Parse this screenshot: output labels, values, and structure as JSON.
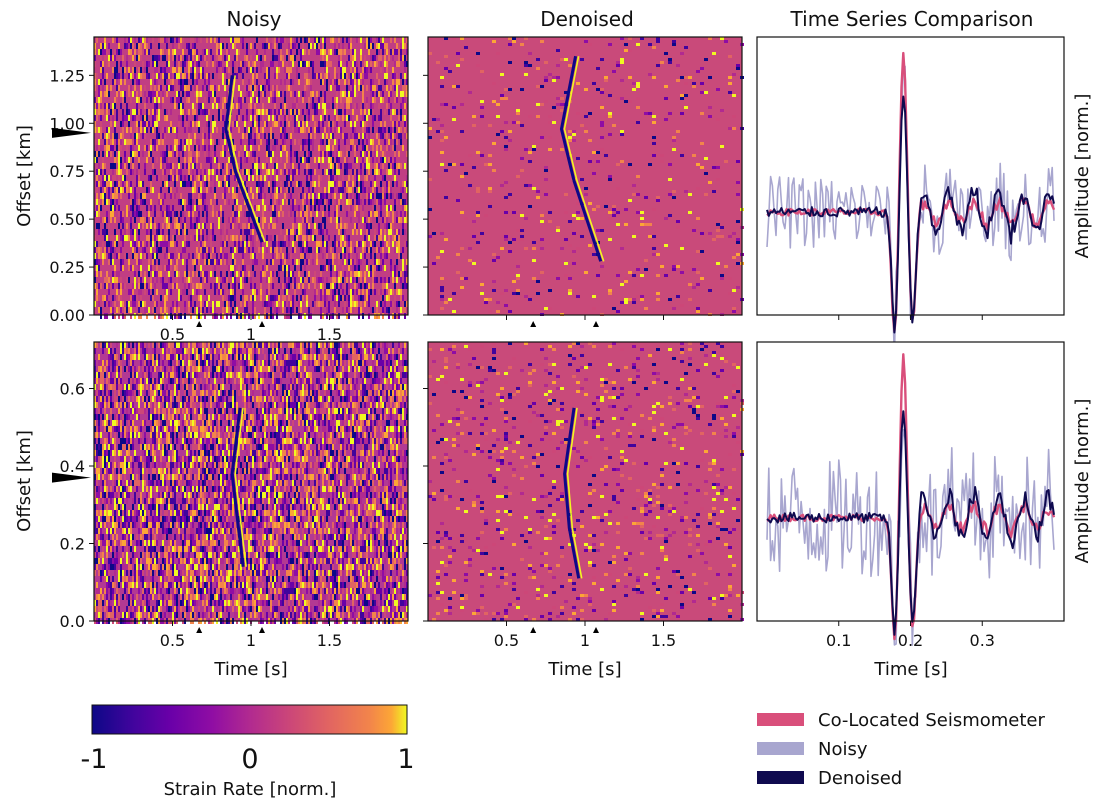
{
  "panel_titles": [
    "Noisy",
    "Denoised",
    "Time Series Comparison"
  ],
  "colorbar": {
    "label": "Strain Rate [norm.]",
    "min_label": "-1",
    "mid_label": "0",
    "max_label": "1",
    "range": [
      -1,
      1
    ],
    "colormap": "plasma"
  },
  "legend": {
    "placement": "bottom-right",
    "items": [
      {
        "label": "Co-Located Seismometer",
        "color": "#d94f7b"
      },
      {
        "label": "Noisy",
        "color": "#a8a6cf"
      },
      {
        "label": "Denoised",
        "color": "#0f0a4f"
      }
    ]
  },
  "chart_data": [
    {
      "type": "heatmap",
      "row": 1,
      "title": "Noisy",
      "xlabel": "",
      "ylabel": "Offset [km]",
      "xlim": [
        0,
        2
      ],
      "ylim": [
        0,
        1.45
      ],
      "xticks": [
        0.5,
        1,
        1.5
      ],
      "yticks": [
        0.0,
        0.25,
        0.5,
        0.75,
        1.0,
        1.25
      ],
      "ytick_labels": [
        "0.00",
        "0.25",
        "0.50",
        "0.75",
        "1.00",
        "1.25"
      ],
      "marker_offset": 0.95,
      "window_markers_s": [
        0.67,
        1.07
      ],
      "arrival": [
        [
          0.88,
          1.25
        ],
        [
          0.84,
          0.97
        ],
        [
          0.9,
          0.75
        ],
        [
          1.07,
          0.38
        ]
      ]
    },
    {
      "type": "heatmap",
      "row": 1,
      "title": "Denoised",
      "xlabel": "",
      "ylabel": "",
      "xlim": [
        0,
        2
      ],
      "ylim": [
        0,
        1.45
      ],
      "window_markers_s": [
        0.67,
        1.07
      ],
      "arrival": [
        [
          0.94,
          1.35
        ],
        [
          0.85,
          0.97
        ],
        [
          0.93,
          0.7
        ],
        [
          1.1,
          0.28
        ]
      ]
    },
    {
      "type": "line",
      "row": 1,
      "title": "Time Series Comparison",
      "xlabel": "",
      "ylabel": "Amplitude [norm.]",
      "xlim": [
        0,
        0.4
      ],
      "series": [
        {
          "name": "Co-Located Seismometer",
          "peak_t": 0.19,
          "peak": 0.98,
          "trough": -0.75
        },
        {
          "name": "Noisy",
          "peak_t": 0.19,
          "peak": 0.88,
          "trough": -0.7
        },
        {
          "name": "Denoised",
          "peak_t": 0.19,
          "peak": 0.72,
          "trough": -0.72
        }
      ]
    },
    {
      "type": "heatmap",
      "row": 2,
      "title": "",
      "xlabel": "Time [s]",
      "ylabel": "Offset [km]",
      "xlim": [
        0,
        2
      ],
      "ylim": [
        0,
        0.72
      ],
      "xticks": [
        0.5,
        1,
        1.5
      ],
      "yticks": [
        0.0,
        0.2,
        0.4,
        0.6
      ],
      "ytick_labels": [
        "0.0",
        "0.2",
        "0.4",
        "0.6"
      ],
      "marker_offset": 0.37,
      "window_markers_s": [
        0.67,
        1.07
      ],
      "arrival": [
        [
          0.93,
          0.55
        ],
        [
          0.88,
          0.38
        ],
        [
          0.92,
          0.24
        ],
        [
          0.95,
          0.14
        ]
      ]
    },
    {
      "type": "heatmap",
      "row": 2,
      "title": "",
      "xlabel": "Time [s]",
      "ylabel": "",
      "xlim": [
        0,
        2
      ],
      "ylim": [
        0,
        0.72
      ],
      "xticks": [
        0.5,
        1,
        1.5
      ],
      "window_markers_s": [
        0.67,
        1.07
      ],
      "arrival": [
        [
          0.93,
          0.55
        ],
        [
          0.87,
          0.38
        ],
        [
          0.9,
          0.24
        ],
        [
          0.96,
          0.11
        ]
      ]
    },
    {
      "type": "line",
      "row": 2,
      "title": "",
      "xlabel": "Time [s]",
      "ylabel": "Amplitude [norm.]",
      "xlim": [
        0,
        0.4
      ],
      "xticks": [
        0.1,
        0.2,
        0.3
      ],
      "series": [
        {
          "name": "Co-Located Seismometer",
          "peak_t": 0.19,
          "peak": 0.98,
          "trough": -0.75
        },
        {
          "name": "Noisy",
          "peak_t": 0.19,
          "peak": 0.55,
          "trough": -0.55
        },
        {
          "name": "Denoised",
          "peak_t": 0.19,
          "peak": 0.65,
          "trough": -0.7
        }
      ]
    }
  ]
}
